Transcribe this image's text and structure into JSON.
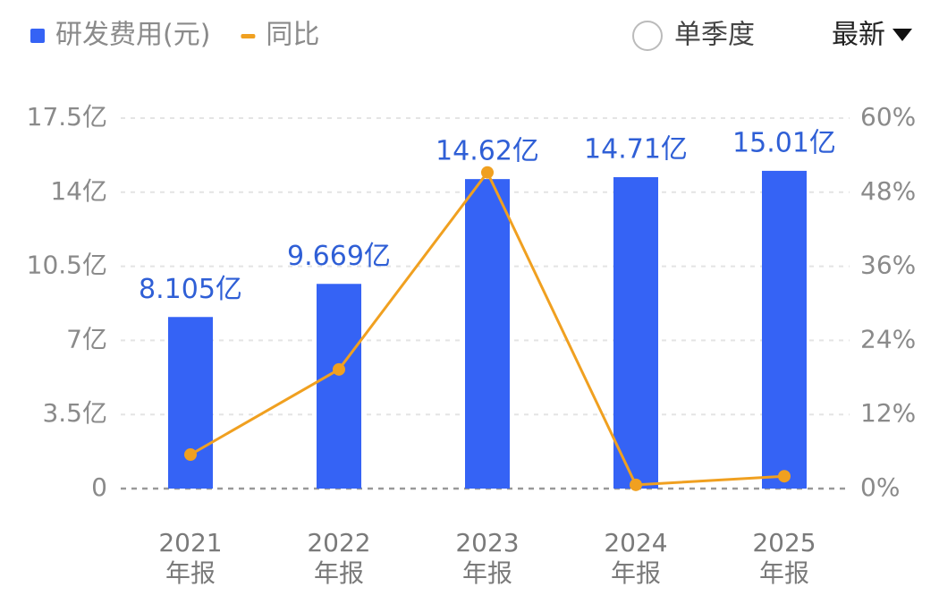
{
  "chart_data": {
    "type": "bar",
    "categories": [
      "2021\n年报",
      "2022\n年报",
      "2023\n年报",
      "2024\n年报",
      "2025\n年报"
    ],
    "series": [
      {
        "name": "研发费用(元)",
        "type": "bar",
        "color": "#3563f5",
        "values": [
          8.105,
          9.669,
          14.62,
          14.71,
          15.01
        ],
        "value_labels": [
          "8.105亿",
          "9.669亿",
          "14.62亿",
          "14.71亿",
          "15.01亿"
        ]
      },
      {
        "name": "同比",
        "type": "line",
        "axis": "y2",
        "color": "#f0a020",
        "values": [
          5.5,
          19.3,
          51.2,
          0.6,
          2.0
        ]
      }
    ],
    "ylim": [
      0,
      17.5
    ],
    "yticks": [
      {
        "value": 0,
        "label": "0"
      },
      {
        "value": 3.5,
        "label": "3.5亿"
      },
      {
        "value": 7,
        "label": "7亿"
      },
      {
        "value": 10.5,
        "label": "10.5亿"
      },
      {
        "value": 14,
        "label": "14亿"
      },
      {
        "value": 17.5,
        "label": "17.5亿"
      }
    ],
    "y2lim": [
      0,
      60
    ],
    "y2ticks": [
      {
        "value": 0,
        "label": "0%"
      },
      {
        "value": 12,
        "label": "12%"
      },
      {
        "value": 24,
        "label": "24%"
      },
      {
        "value": 36,
        "label": "36%"
      },
      {
        "value": 48,
        "label": "48%"
      },
      {
        "value": 60,
        "label": "60%"
      }
    ],
    "grid": true
  },
  "controls": {
    "single_quarter": "单季度",
    "period": "最新"
  }
}
